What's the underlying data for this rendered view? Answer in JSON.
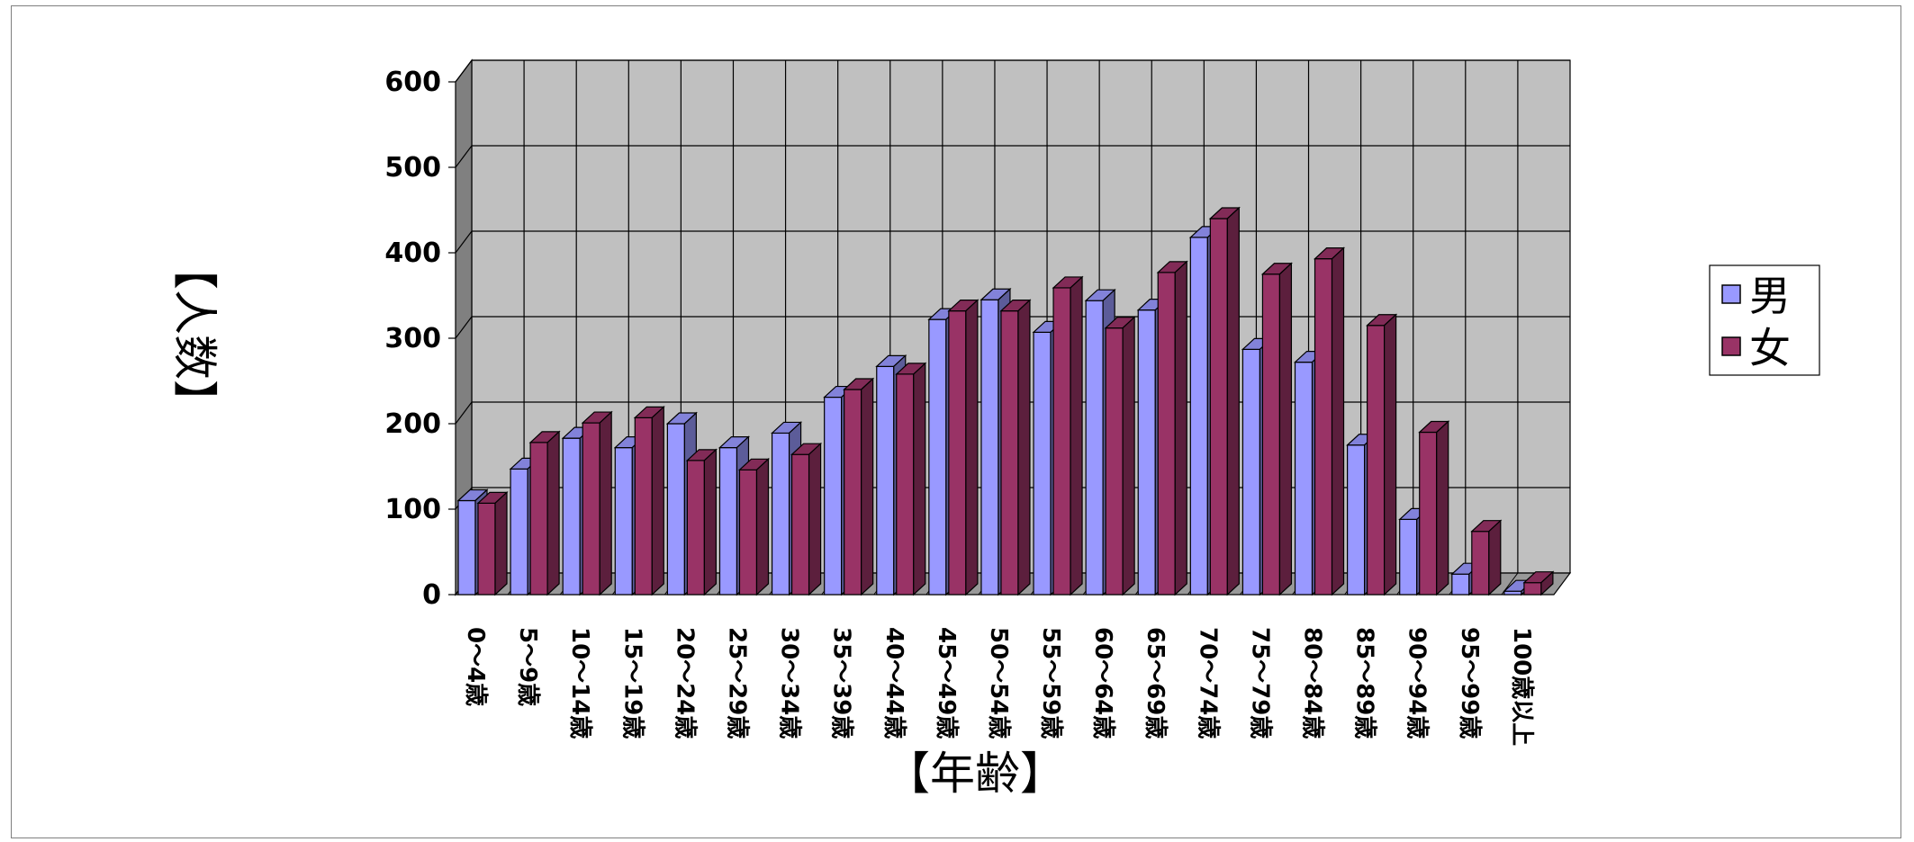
{
  "chart_data": {
    "type": "bar",
    "title": "",
    "xlabel": "【年齢】",
    "ylabel": "【人数】",
    "ylim": [
      0,
      600
    ],
    "yticks": [
      "0",
      "100",
      "200",
      "300",
      "400",
      "500",
      "600"
    ],
    "grid": true,
    "legend_position": "right",
    "categories": [
      "0～4歳",
      "5～9歳",
      "10～14歳",
      "15～19歳",
      "20～24歳",
      "25～29歳",
      "30～34歳",
      "35～39歳",
      "40～44歳",
      "45～49歳",
      "50～54歳",
      "55～59歳",
      "60～64歳",
      "65～69歳",
      "70～74歳",
      "75～79歳",
      "80～84歳",
      "85～89歳",
      "90～94歳",
      "95～99歳",
      "100歳以上"
    ],
    "series": [
      {
        "name": "男",
        "color": "#9999ff",
        "values": [
          110,
          147,
          183,
          172,
          200,
          172,
          189,
          231,
          267,
          322,
          345,
          307,
          344,
          333,
          418,
          287,
          272,
          175,
          88,
          24,
          4
        ]
      },
      {
        "name": "女",
        "color": "#993366",
        "values": [
          107,
          178,
          201,
          207,
          157,
          146,
          164,
          240,
          258,
          332,
          332,
          359,
          312,
          377,
          440,
          375,
          393,
          315,
          190,
          74,
          14
        ]
      }
    ]
  }
}
